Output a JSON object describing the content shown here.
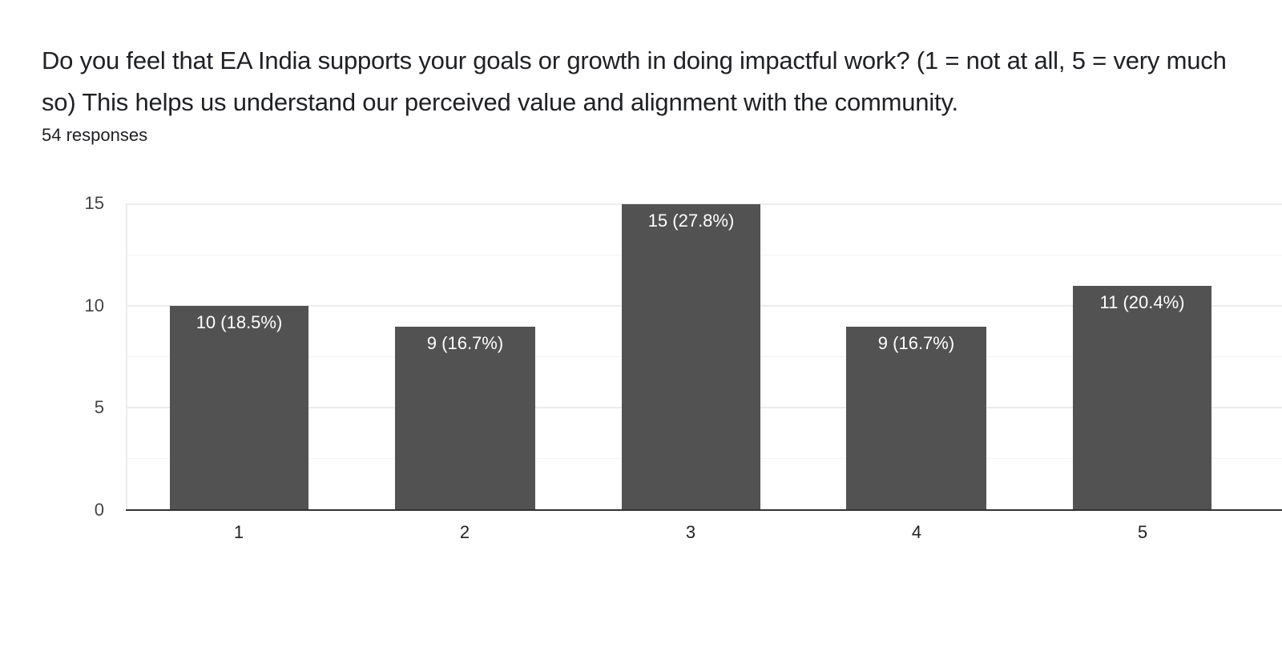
{
  "header": {
    "question": "Do you feel that EA India supports your goals or growth in doing impactful work? (1 = not at all, 5 = very much so) This helps us understand our perceived value and alignment with the community.",
    "responses": "54 responses"
  },
  "colors": {
    "bar": "#525252",
    "label": "#ffffff",
    "grid": "#ececec"
  },
  "chart_data": {
    "type": "bar",
    "title": "Do you feel that EA India supports your goals or growth in doing impactful work? (1 = not at all, 5 = very much so) This helps us understand our perceived value and alignment with the community.",
    "subtitle": "54 responses",
    "categories": [
      "1",
      "2",
      "3",
      "4",
      "5"
    ],
    "values": [
      10,
      9,
      15,
      9,
      11
    ],
    "percentages": [
      18.5,
      16.7,
      27.8,
      16.7,
      20.4
    ],
    "data_labels": [
      "10 (18.5%)",
      "9 (16.7%)",
      "15 (27.8%)",
      "9 (16.7%)",
      "11 (20.4%)"
    ],
    "xlabel": "",
    "ylabel": "",
    "ylim": [
      0,
      15
    ],
    "yticks": [
      "0",
      "5",
      "10",
      "15"
    ],
    "grid": true,
    "legend": null
  }
}
